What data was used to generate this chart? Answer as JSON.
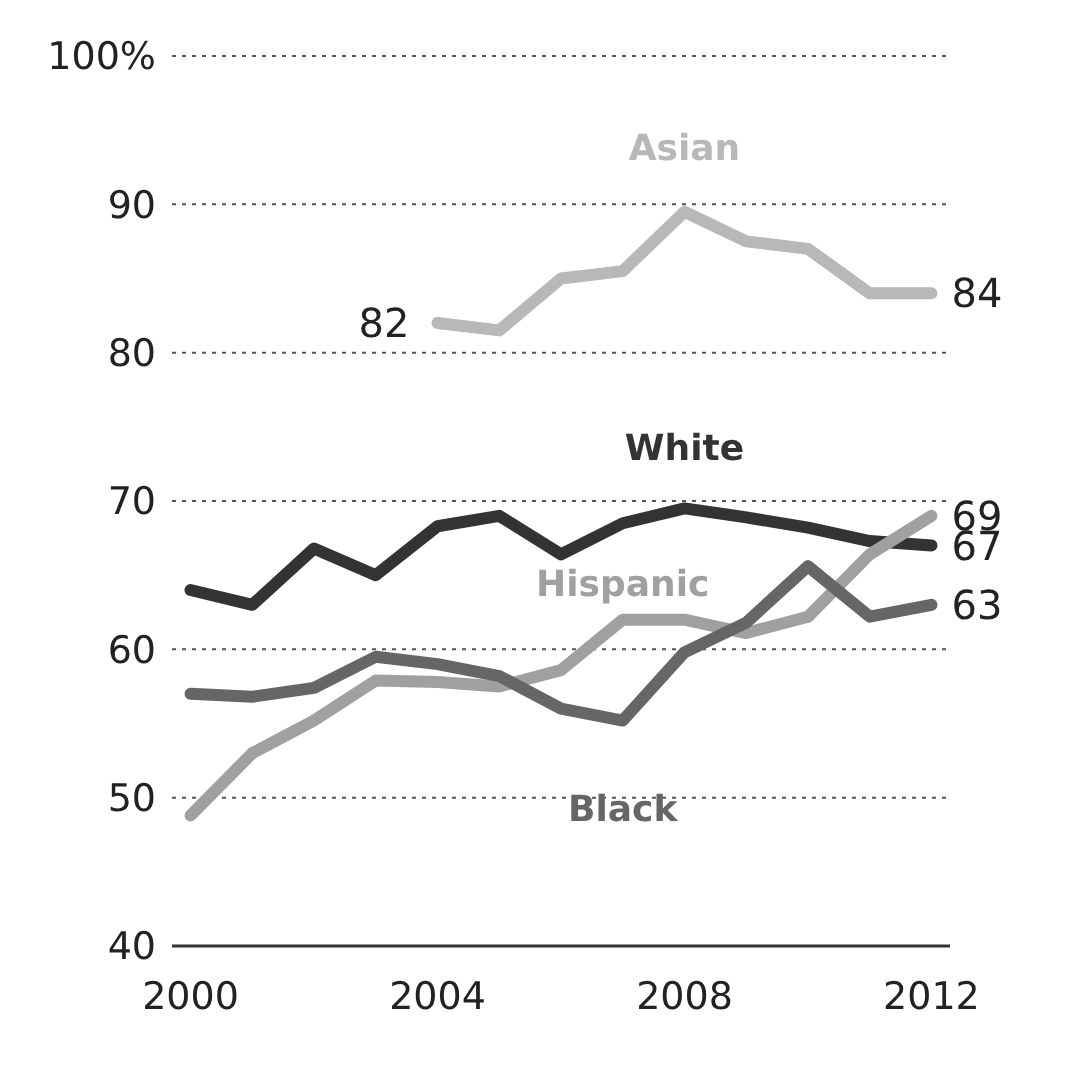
{
  "chart_data": {
    "type": "line",
    "x": [
      2000,
      2001,
      2002,
      2003,
      2004,
      2005,
      2006,
      2007,
      2008,
      2009,
      2010,
      2011,
      2012
    ],
    "series": [
      {
        "name": "Asian",
        "color": "#b8b8b8",
        "values": [
          null,
          null,
          null,
          null,
          82,
          81.5,
          85,
          85.5,
          89.5,
          87.5,
          87,
          84,
          84
        ],
        "value_labels": [
          null,
          null,
          null,
          null,
          "82",
          null,
          null,
          null,
          null,
          null,
          null,
          null,
          "84"
        ]
      },
      {
        "name": "White",
        "color": "#333333",
        "values": [
          64,
          63,
          66.8,
          65,
          68.3,
          69,
          66.4,
          68.5,
          69.5,
          68.9,
          68.2,
          67.3,
          67
        ],
        "value_labels": [
          null,
          null,
          null,
          null,
          null,
          null,
          null,
          null,
          null,
          null,
          null,
          null,
          "67"
        ]
      },
      {
        "name": "Hispanic",
        "color": "#a0a0a0",
        "values": [
          48.8,
          53,
          55.2,
          57.9,
          57.8,
          57.5,
          58.6,
          62,
          62,
          61.1,
          62.2,
          66.4,
          69
        ],
        "value_labels": [
          null,
          null,
          null,
          null,
          null,
          null,
          null,
          null,
          null,
          null,
          null,
          null,
          "69"
        ]
      },
      {
        "name": "Black",
        "color": "#666666",
        "values": [
          57,
          56.8,
          57.4,
          59.5,
          59,
          58.2,
          56,
          55.2,
          59.8,
          61.8,
          65.6,
          62.2,
          63
        ],
        "value_labels": [
          null,
          null,
          null,
          null,
          null,
          null,
          null,
          null,
          null,
          null,
          null,
          null,
          "63"
        ]
      }
    ],
    "xlim": [
      1999.7,
      2012.3
    ],
    "xticks": [
      2000,
      2004,
      2008,
      2012
    ],
    "ylim": [
      40,
      100
    ],
    "yticks": [
      40,
      50,
      60,
      70,
      80,
      90,
      {
        "value": 100,
        "label": "100%"
      }
    ],
    "grid": "y",
    "legend": false,
    "marker": "none",
    "line_style": "solid"
  }
}
